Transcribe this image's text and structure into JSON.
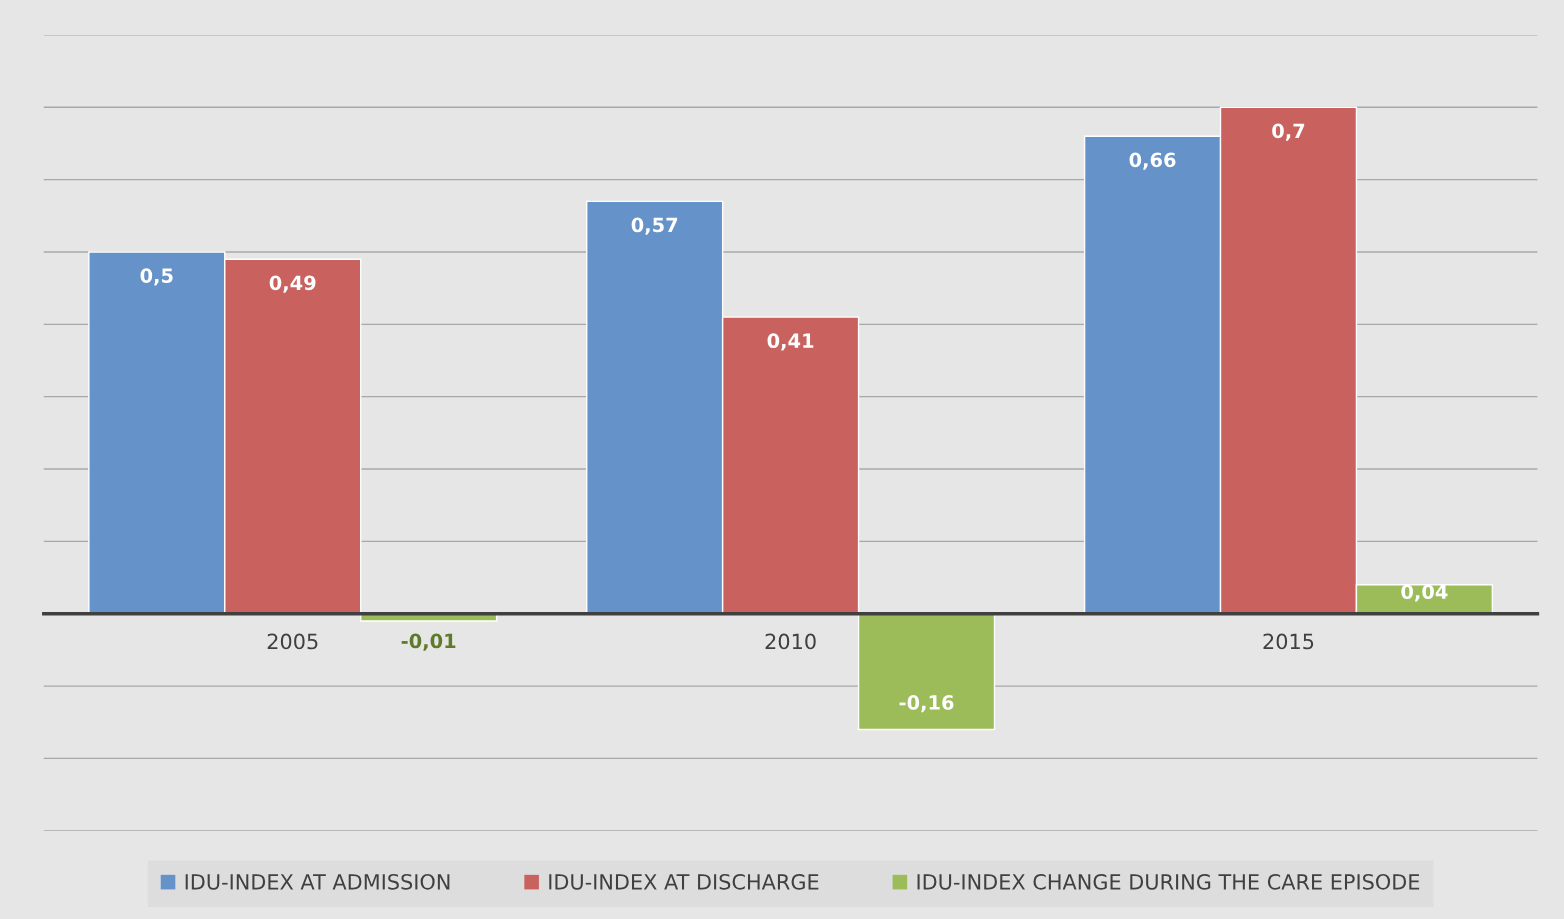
{
  "chart_data": {
    "type": "bar",
    "categories": [
      "2005",
      "2010",
      "2015"
    ],
    "series": [
      {
        "name": "IDU-INDEX AT ADMISSION",
        "color": "#6592c8",
        "values": [
          0.5,
          0.57,
          0.66
        ],
        "value_labels": [
          "0,5",
          "0,57",
          "0,66"
        ]
      },
      {
        "name": "IDU-INDEX AT DISCHARGE",
        "color": "#c9625f",
        "values": [
          0.49,
          0.41,
          0.7
        ],
        "value_labels": [
          "0,49",
          "0,41",
          "0,7"
        ]
      },
      {
        "name": "IDU-INDEX CHANGE DURING THE CARE EPISODE",
        "color": "#9cbb59",
        "values": [
          -0.01,
          -0.16,
          0.04
        ],
        "value_labels": [
          "-0,01",
          "-0,16",
          "0,04"
        ]
      }
    ],
    "ylim": [
      -0.3,
      0.8
    ],
    "yticks": [
      {
        "value": -0.3,
        "label": null
      },
      {
        "value": -0.2,
        "label": null
      },
      {
        "value": -0.1,
        "label": null
      },
      {
        "value": 0,
        "label": null
      },
      {
        "value": 0.1,
        "label": null
      },
      {
        "value": 0.2,
        "label": null
      },
      {
        "value": 0.3,
        "label": null
      },
      {
        "value": 0.4,
        "label": null
      },
      {
        "value": 0.5,
        "label": null
      },
      {
        "value": 0.6,
        "label": null
      },
      {
        "value": 0.7,
        "label": null
      },
      {
        "value": 0.8,
        "label": null
      }
    ],
    "tick_labels": "x",
    "grid": "y",
    "legend": "bottom"
  }
}
